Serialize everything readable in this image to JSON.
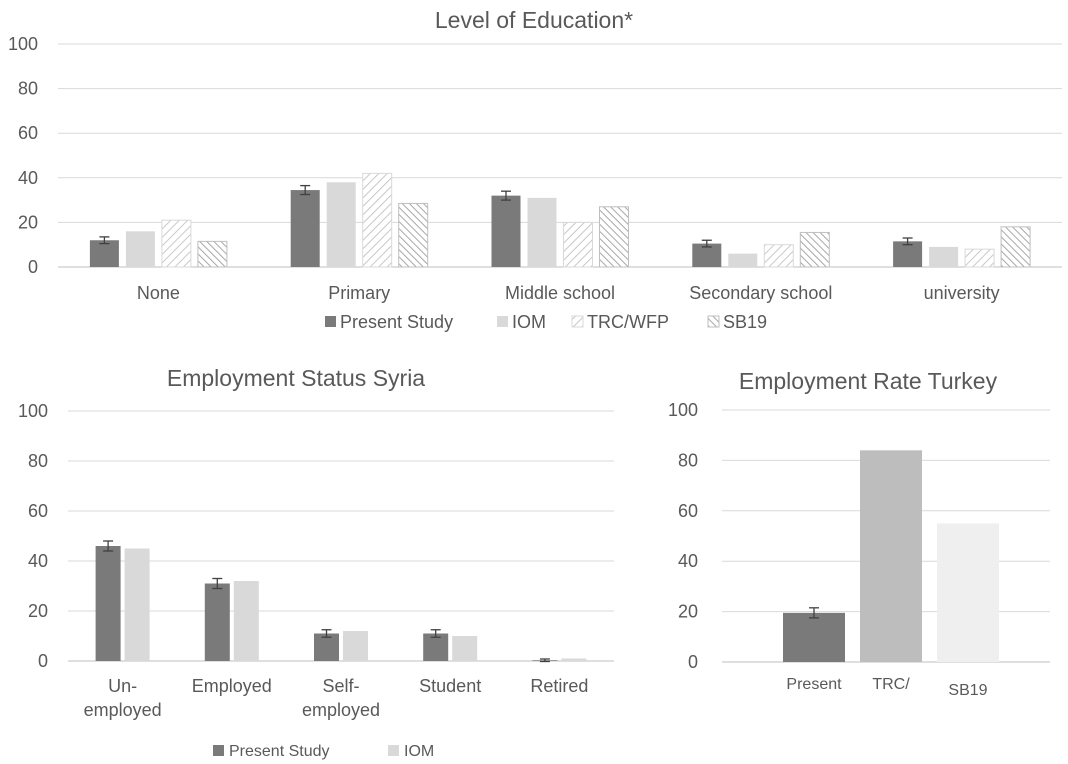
{
  "colors": {
    "present": "#7a7a7a",
    "iom": "#d9d9d9",
    "trc_wfp": "#d9d9d9",
    "sb19": "#bfbfbf",
    "turkey_trc": "#bdbdbd",
    "turkey_sb19": "#efefef"
  },
  "chart_data": [
    {
      "type": "bar",
      "title": "Level of Education*",
      "categories": [
        "None",
        "Primary",
        "Middle school",
        "Secondary school",
        "university"
      ],
      "ylim": [
        0,
        100
      ],
      "yticks": [
        "0",
        "20",
        "40",
        "60",
        "80",
        "100"
      ],
      "grid": true,
      "legend": "bottom",
      "series": [
        {
          "name": "Present Study",
          "values": [
            12,
            34.5,
            32,
            10.5,
            11.5
          ],
          "errors": [
            1.5,
            2,
            2,
            1.5,
            1.5
          ],
          "pattern": "solid-dark"
        },
        {
          "name": "IOM",
          "values": [
            16,
            38,
            31,
            6,
            9
          ],
          "pattern": "solid-light"
        },
        {
          "name": "TRC/WFP",
          "values": [
            21,
            42,
            20,
            10,
            8
          ],
          "pattern": "diag-right"
        },
        {
          "name": "SB19",
          "values": [
            11.5,
            28.5,
            27,
            15.5,
            18
          ],
          "pattern": "diag-left"
        }
      ]
    },
    {
      "type": "bar",
      "title": "Employment Status Syria",
      "categories": [
        "Un-\nemployed",
        "Employed",
        "Self-\nemployed",
        "Student",
        "Retired"
      ],
      "ylim": [
        0,
        100
      ],
      "yticks": [
        "0",
        "20",
        "40",
        "60",
        "80",
        "100"
      ],
      "grid": true,
      "legend": "bottom",
      "series": [
        {
          "name": "Present Study",
          "values": [
            46,
            31,
            11,
            11,
            0.3
          ],
          "errors": [
            2,
            2,
            1.5,
            1.5,
            0.5
          ],
          "pattern": "solid-dark"
        },
        {
          "name": "IOM",
          "values": [
            45,
            32,
            12,
            10,
            1
          ],
          "pattern": "solid-light"
        }
      ]
    },
    {
      "type": "bar",
      "title": "Employment Rate Turkey",
      "categories": [
        "Present",
        "TRC/",
        "SB19"
      ],
      "ylim": [
        0,
        100
      ],
      "yticks": [
        "0",
        "20",
        "40",
        "60",
        "80",
        "100"
      ],
      "grid": true,
      "values": [
        19.5,
        84,
        55
      ],
      "errors": [
        2,
        0,
        0
      ]
    }
  ]
}
